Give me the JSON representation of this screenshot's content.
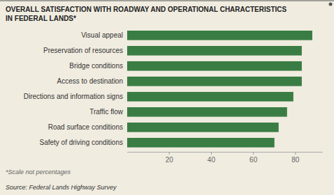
{
  "chart_data": {
    "type": "bar",
    "orientation": "horizontal",
    "title": "OVERALL SATISFACTION WITH ROADWAY AND OPERATIONAL CHARACTERISTICS",
    "subtitle": "IN FEDERAL LANDS*",
    "annotations": [
      "*Scale not percentages",
      "Source: Federal Lands Highway Survey"
    ],
    "categories": [
      "Safety of driving conditions",
      "Road surface conditions",
      "Traffic flow",
      "Directions and information signs",
      "Access to destination",
      "Bridge conditions",
      "Preservation of resources",
      "Visual appeal"
    ],
    "values": [
      70,
      72,
      76,
      79,
      83,
      83,
      83,
      88
    ],
    "color": "#3a7d44",
    "xlim": [
      0,
      93
    ],
    "xticks": [
      20,
      40,
      60,
      80
    ],
    "grid": false,
    "data_labels": false
  }
}
